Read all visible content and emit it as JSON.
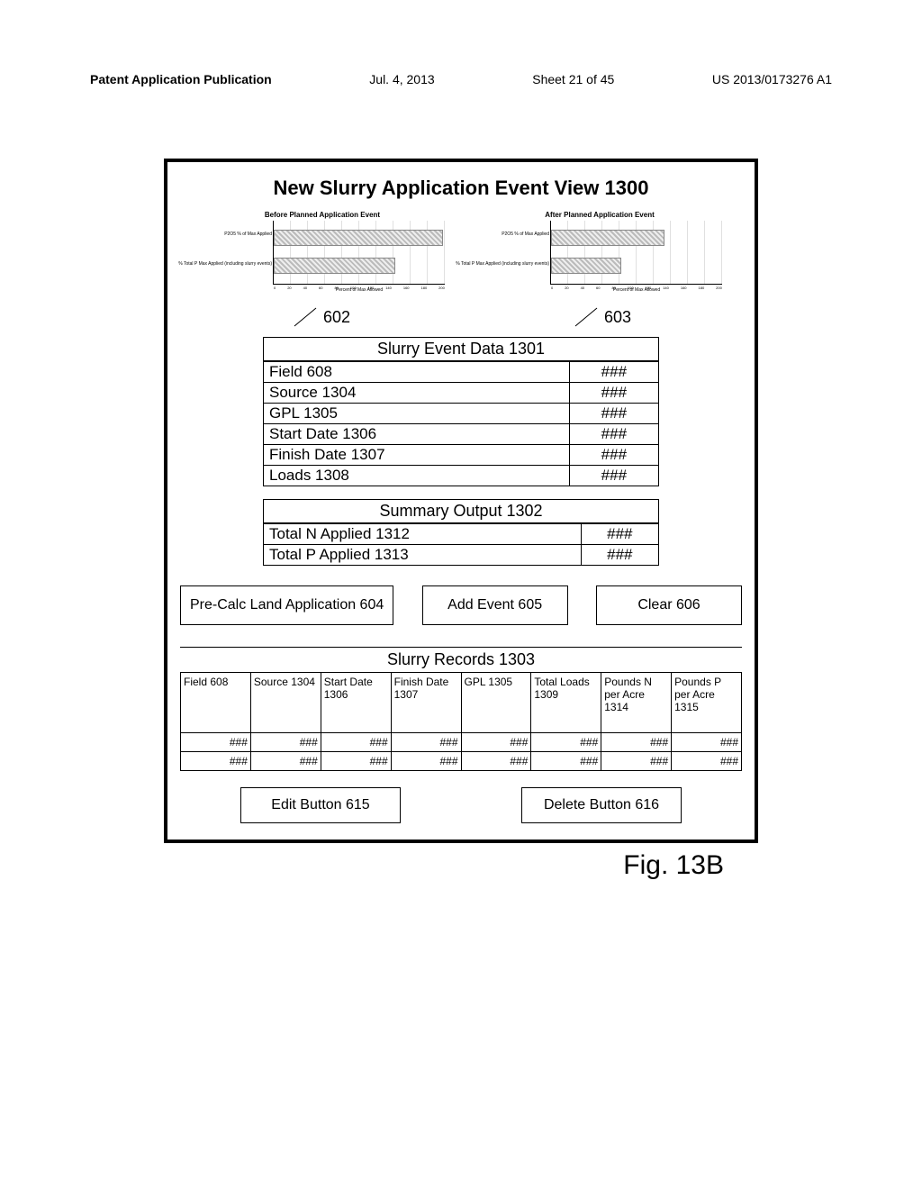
{
  "header": {
    "left": "Patent Application Publication",
    "date": "Jul. 4, 2013",
    "sheet": "Sheet 21 of 45",
    "pubno": "US 2013/0173276 A1"
  },
  "title": "New Slurry Application Event View 1300",
  "charts": {
    "before": {
      "title": "Before Planned Application Event",
      "y_labels": [
        "P2O5 % of Max Applied",
        "% Total P Max Applied (including slurry events)"
      ],
      "x_label": "Percent of Max Allowed",
      "bar1_width_pct": 98,
      "bar2_width_pct": 70,
      "ticks": [
        "0",
        "20",
        "40",
        "60",
        "80",
        "100",
        "120",
        "140",
        "160",
        "180",
        "200"
      ]
    },
    "after": {
      "title": "After Planned Application Event",
      "y_labels": [
        "P2O5 % of Max Applied",
        "% Total P Max Applied (including slurry events)"
      ],
      "x_label": "Percent of Max Allowed",
      "bar1_width_pct": 65,
      "bar2_width_pct": 40,
      "ticks": [
        "0",
        "20",
        "40",
        "60",
        "80",
        "100",
        "120",
        "140",
        "160",
        "180",
        "200"
      ]
    },
    "pointer_left": "602",
    "pointer_right": "603"
  },
  "event_data": {
    "caption": "Slurry Event Data 1301",
    "rows": [
      {
        "label": "Field 608",
        "value": "###"
      },
      {
        "label": "Source 1304",
        "value": "###"
      },
      {
        "label": "GPL 1305",
        "value": "###"
      },
      {
        "label": "Start Date 1306",
        "value": "###"
      },
      {
        "label": "Finish Date 1307",
        "value": "###"
      },
      {
        "label": "Loads 1308",
        "value": "###"
      }
    ]
  },
  "summary": {
    "caption": "Summary Output 1302",
    "rows": [
      {
        "label": "Total N Applied 1312",
        "value": "###"
      },
      {
        "label": "Total P Applied 1313",
        "value": "###"
      }
    ]
  },
  "buttons": {
    "precalc": "Pre-Calc Land Application 604",
    "add": "Add Event 605",
    "clear": "Clear 606"
  },
  "records": {
    "title": "Slurry Records 1303",
    "columns": [
      "Field 608",
      "Source 1304",
      "Start Date 1306",
      "Finish Date 1307",
      "GPL 1305",
      "Total Loads 1309",
      "Pounds N per Acre 1314",
      "Pounds P per Acre 1315"
    ],
    "rows": [
      [
        "###",
        "###",
        "###",
        "###",
        "###",
        "###",
        "###",
        "###"
      ],
      [
        "###",
        "###",
        "###",
        "###",
        "###",
        "###",
        "###",
        "###"
      ]
    ]
  },
  "record_buttons": {
    "edit": "Edit Button 615",
    "delete": "Delete Button 616"
  },
  "figure_label": "Fig. 13B"
}
